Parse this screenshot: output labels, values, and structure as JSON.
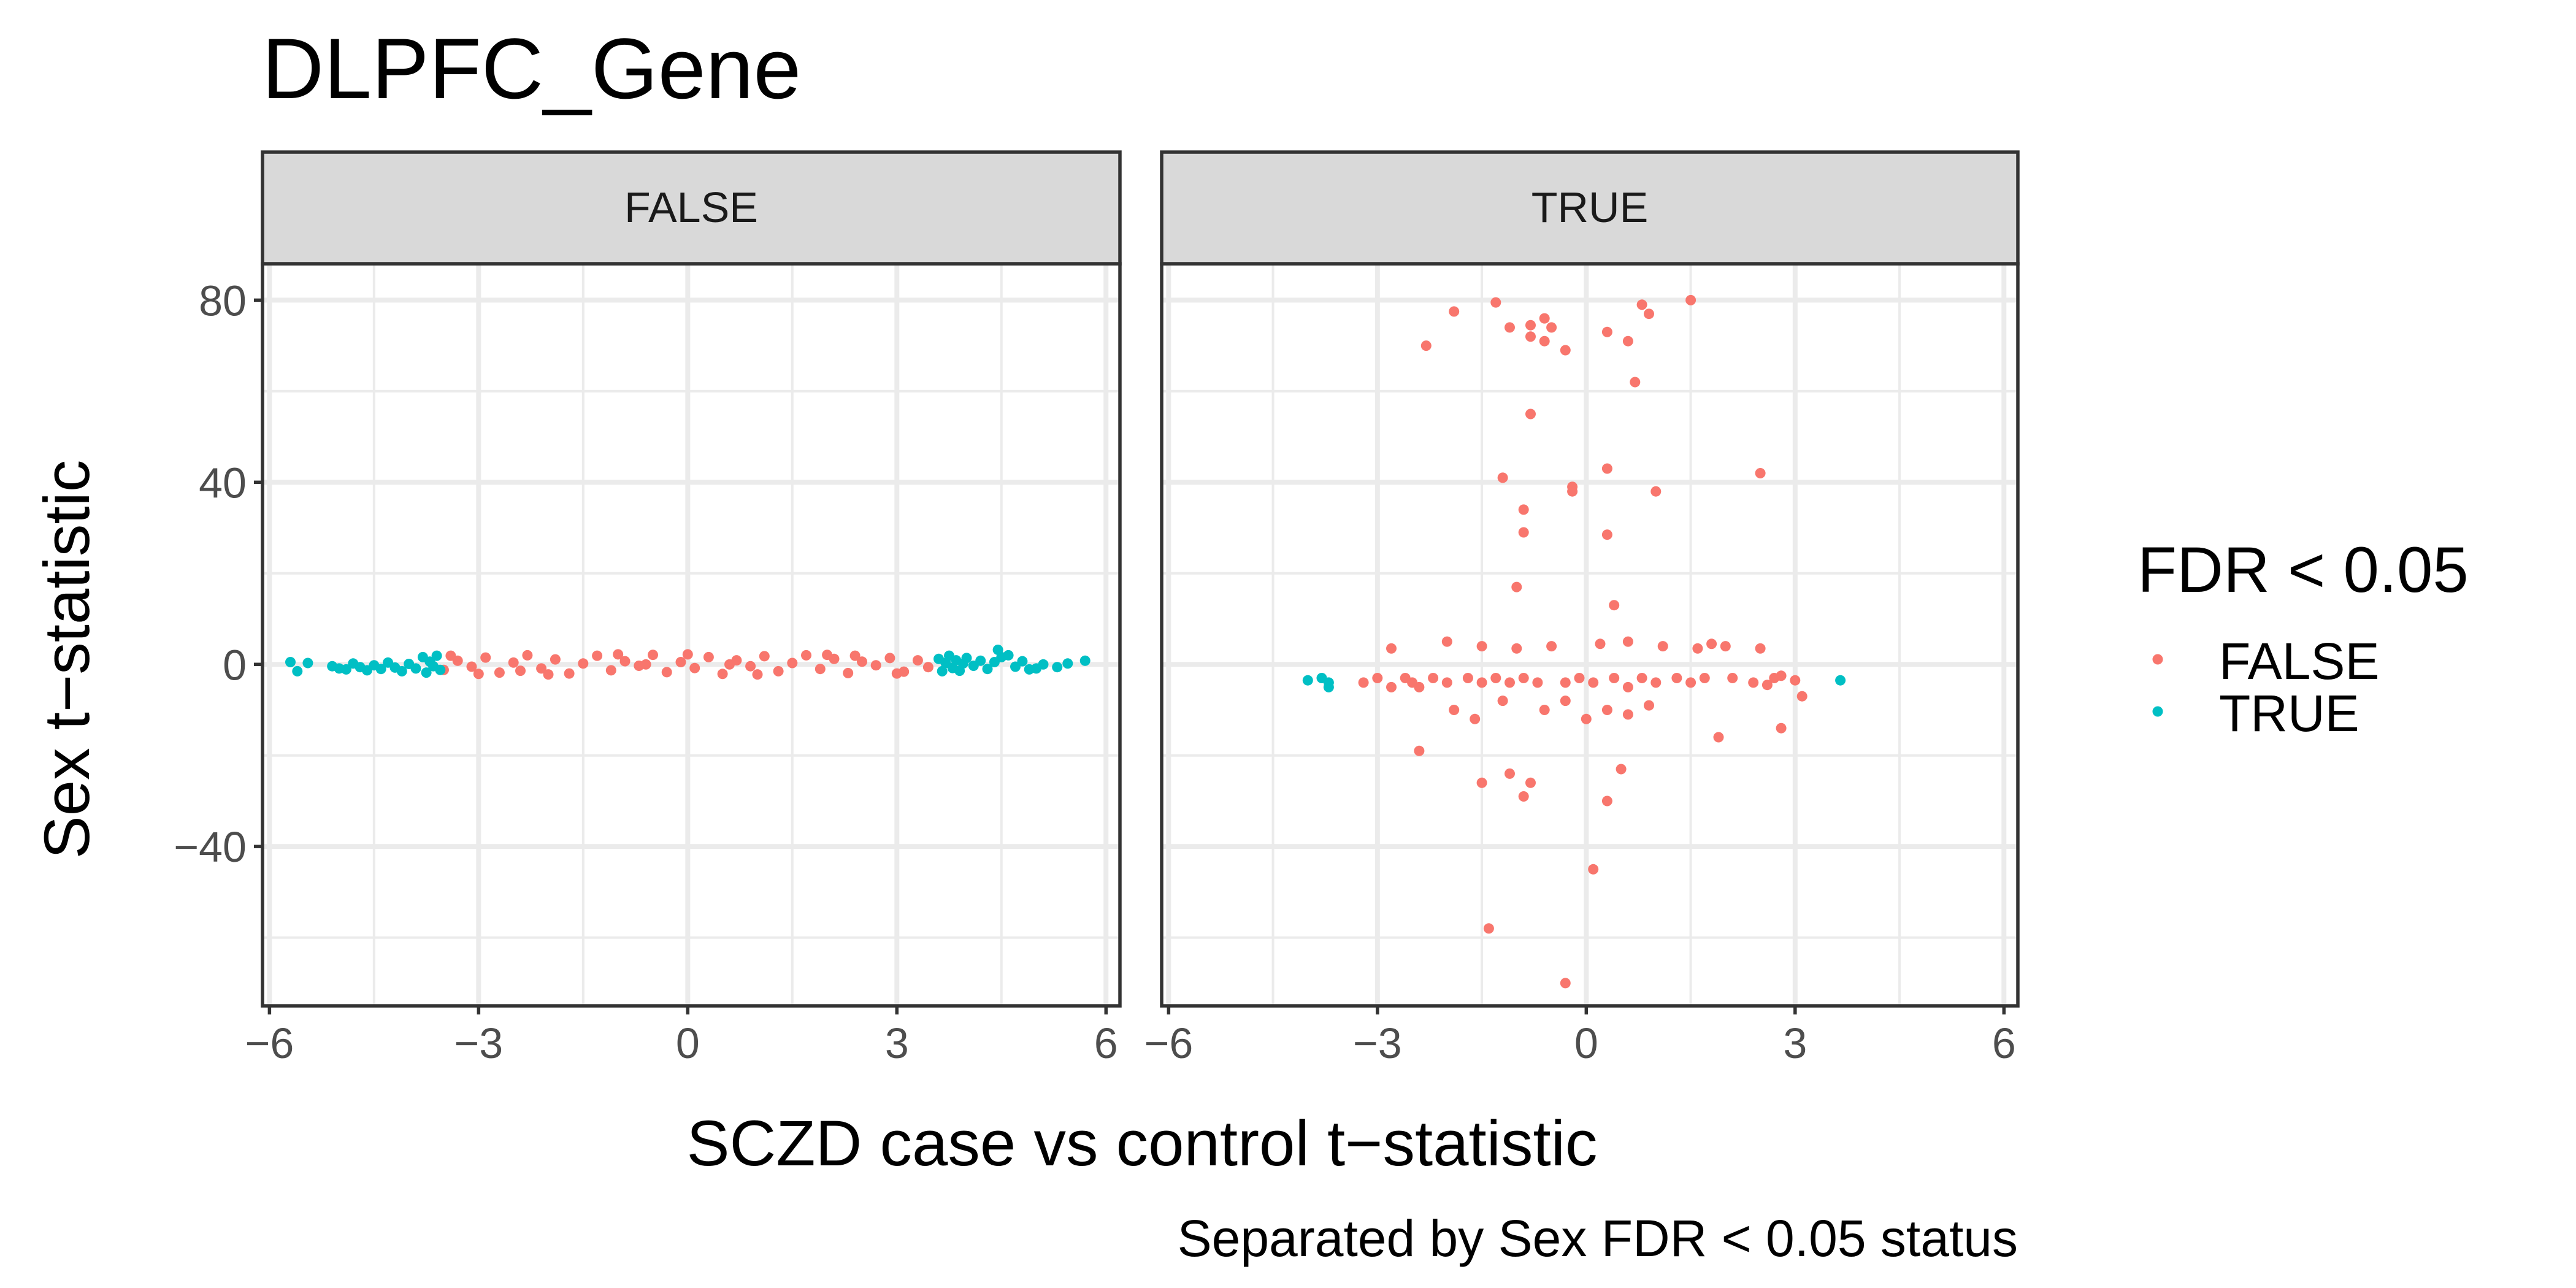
{
  "chart_data": {
    "type": "scatter",
    "title": "DLPFC_Gene",
    "caption": "Separated by Sex FDR < 0.05 status",
    "xlabel": "SCZD case vs control t−statistic",
    "ylabel": "Sex t−statistic",
    "xlim": [
      -6.1,
      6.2
    ],
    "ylim": [
      -75,
      88
    ],
    "x_ticks": [
      -6,
      -3,
      0,
      3,
      6
    ],
    "x_tick_labels": [
      "−6",
      "−3",
      "0",
      "3",
      "6"
    ],
    "y_ticks": [
      -40,
      0,
      40,
      80
    ],
    "y_tick_labels": [
      "−40",
      "0",
      "40",
      "80"
    ],
    "grid": true,
    "facet_variable": "Sex FDR < 0.05",
    "facets": [
      {
        "label": "FALSE",
        "series": [
          {
            "name": "FALSE",
            "points": [
              [
                -3.5,
                -1.2
              ],
              [
                -3.3,
                0.8
              ],
              [
                -3.1,
                -0.5
              ],
              [
                -2.9,
                1.5
              ],
              [
                -2.7,
                -1.8
              ],
              [
                -2.5,
                0.4
              ],
              [
                -2.3,
                2.0
              ],
              [
                -2.1,
                -0.9
              ],
              [
                -1.9,
                1.1
              ],
              [
                -1.7,
                -2.0
              ],
              [
                -1.5,
                0.2
              ],
              [
                -1.3,
                1.9
              ],
              [
                -1.1,
                -1.3
              ],
              [
                -0.9,
                0.7
              ],
              [
                -0.7,
                -0.3
              ],
              [
                -0.5,
                2.1
              ],
              [
                -0.3,
                -1.7
              ],
              [
                -0.1,
                0.5
              ],
              [
                0.1,
                -0.8
              ],
              [
                0.3,
                1.6
              ],
              [
                0.5,
                -2.1
              ],
              [
                0.7,
                0.9
              ],
              [
                0.9,
                -0.4
              ],
              [
                1.1,
                1.8
              ],
              [
                1.3,
                -1.5
              ],
              [
                1.5,
                0.3
              ],
              [
                1.7,
                2.0
              ],
              [
                1.9,
                -1.0
              ],
              [
                2.1,
                1.2
              ],
              [
                2.3,
                -1.9
              ],
              [
                2.5,
                0.6
              ],
              [
                2.7,
                -0.2
              ],
              [
                2.9,
                1.4
              ],
              [
                3.1,
                -1.6
              ],
              [
                3.3,
                0.9
              ],
              [
                3.45,
                -0.6
              ],
              [
                -3.4,
                1.9
              ],
              [
                -2.0,
                -2.2
              ],
              [
                0.0,
                2.2
              ],
              [
                1.0,
                -2.2
              ],
              [
                2.0,
                2.1
              ],
              [
                -1.0,
                2.2
              ],
              [
                3.0,
                -2.0
              ],
              [
                -3.0,
                -2.1
              ],
              [
                2.4,
                1.9
              ],
              [
                -2.4,
                -1.4
              ],
              [
                0.6,
                0.0
              ],
              [
                -0.6,
                0.0
              ]
            ]
          },
          {
            "name": "TRUE",
            "points": [
              [
                -5.7,
                0.5
              ],
              [
                -5.6,
                -1.5
              ],
              [
                -5.45,
                0.3
              ],
              [
                -5.1,
                -0.4
              ],
              [
                -5.0,
                -0.9
              ],
              [
                -4.9,
                -1.1
              ],
              [
                -4.8,
                0.2
              ],
              [
                -4.7,
                -0.6
              ],
              [
                -4.6,
                -1.3
              ],
              [
                -4.5,
                -0.2
              ],
              [
                -4.4,
                -1.0
              ],
              [
                -4.3,
                0.4
              ],
              [
                -4.2,
                -0.7
              ],
              [
                -4.1,
                -1.5
              ],
              [
                -4.0,
                0.1
              ],
              [
                -3.9,
                -0.9
              ],
              [
                -3.8,
                1.6
              ],
              [
                -3.75,
                -1.8
              ],
              [
                -3.7,
                0.6
              ],
              [
                -3.65,
                -0.4
              ],
              [
                -3.6,
                1.9
              ],
              [
                -3.55,
                -1.2
              ],
              [
                3.6,
                1.2
              ],
              [
                3.65,
                -1.5
              ],
              [
                3.7,
                0.3
              ],
              [
                3.75,
                1.9
              ],
              [
                3.8,
                -0.8
              ],
              [
                3.85,
                0.9
              ],
              [
                3.9,
                -1.4
              ],
              [
                3.95,
                0.2
              ],
              [
                4.0,
                1.4
              ],
              [
                4.1,
                -0.3
              ],
              [
                4.2,
                0.8
              ],
              [
                4.3,
                -1.0
              ],
              [
                4.4,
                0.5
              ],
              [
                4.45,
                3.2
              ],
              [
                4.5,
                1.6
              ],
              [
                4.6,
                2.0
              ],
              [
                4.7,
                -0.5
              ],
              [
                4.8,
                0.7
              ],
              [
                4.9,
                -1.1
              ],
              [
                5.0,
                -0.9
              ],
              [
                5.1,
                0.0
              ],
              [
                5.3,
                -0.6
              ],
              [
                5.45,
                0.2
              ],
              [
                5.7,
                0.8
              ]
            ]
          }
        ]
      },
      {
        "label": "TRUE",
        "series": [
          {
            "name": "FALSE",
            "points": [
              [
                -1.9,
                77.5
              ],
              [
                -1.3,
                79.5
              ],
              [
                -1.1,
                74
              ],
              [
                -0.8,
                74.5
              ],
              [
                -0.6,
                76
              ],
              [
                -0.5,
                74
              ],
              [
                -0.8,
                72
              ],
              [
                -0.6,
                71
              ],
              [
                -0.3,
                69
              ],
              [
                -2.3,
                70
              ],
              [
                0.3,
                73
              ],
              [
                0.6,
                71
              ],
              [
                0.8,
                79
              ],
              [
                0.9,
                77
              ],
              [
                1.5,
                80
              ],
              [
                0.7,
                62
              ],
              [
                -0.8,
                55
              ],
              [
                -1.2,
                41
              ],
              [
                0.3,
                43
              ],
              [
                2.5,
                42
              ],
              [
                -0.9,
                34
              ],
              [
                -0.9,
                29
              ],
              [
                0.3,
                28.5
              ],
              [
                -0.2,
                39
              ],
              [
                -0.2,
                38
              ],
              [
                1.0,
                38
              ],
              [
                -1.0,
                17
              ],
              [
                0.4,
                13
              ],
              [
                -2.0,
                5
              ],
              [
                -1.5,
                4
              ],
              [
                -1.0,
                3.5
              ],
              [
                -0.5,
                4
              ],
              [
                0.2,
                4.5
              ],
              [
                0.6,
                5
              ],
              [
                1.1,
                4
              ],
              [
                1.6,
                3.5
              ],
              [
                2.0,
                4
              ],
              [
                2.5,
                3.5
              ],
              [
                -2.8,
                3.5
              ],
              [
                1.8,
                4.5
              ],
              [
                -0.3,
                -4
              ],
              [
                -0.1,
                -3
              ],
              [
                0.1,
                -4
              ],
              [
                0.4,
                -3
              ],
              [
                0.6,
                -5
              ],
              [
                0.8,
                -3
              ],
              [
                1.0,
                -4
              ],
              [
                1.3,
                -3
              ],
              [
                1.5,
                -4
              ],
              [
                1.7,
                -3
              ],
              [
                -0.7,
                -4
              ],
              [
                -0.9,
                -3
              ],
              [
                -1.1,
                -4
              ],
              [
                -1.3,
                -3
              ],
              [
                -1.5,
                -4
              ],
              [
                -1.7,
                -3
              ],
              [
                -2.0,
                -4
              ],
              [
                -2.2,
                -3
              ],
              [
                -2.5,
                -4
              ],
              [
                -2.8,
                -5
              ],
              [
                -3.0,
                -3
              ],
              [
                -3.2,
                -4
              ],
              [
                2.1,
                -3
              ],
              [
                2.4,
                -4
              ],
              [
                2.7,
                -3
              ],
              [
                3.0,
                -3.5
              ],
              [
                2.8,
                -2.5
              ],
              [
                2.6,
                -4.5
              ],
              [
                -2.6,
                -3
              ],
              [
                -2.4,
                -5
              ],
              [
                -1.9,
                -10
              ],
              [
                -1.6,
                -12
              ],
              [
                -1.2,
                -8
              ],
              [
                -0.6,
                -10
              ],
              [
                0.0,
                -12
              ],
              [
                0.3,
                -10
              ],
              [
                0.6,
                -11
              ],
              [
                -0.3,
                -8
              ],
              [
                0.9,
                -9
              ],
              [
                -2.4,
                -19
              ],
              [
                -1.5,
                -26
              ],
              [
                -1.1,
                -24
              ],
              [
                -0.9,
                -29
              ],
              [
                -0.8,
                -26
              ],
              [
                0.5,
                -23
              ],
              [
                0.3,
                -30
              ],
              [
                1.9,
                -16
              ],
              [
                2.8,
                -14
              ],
              [
                3.1,
                -7
              ],
              [
                0.1,
                -45
              ],
              [
                -1.4,
                -58
              ],
              [
                -0.3,
                -70
              ]
            ]
          },
          {
            "name": "TRUE",
            "points": [
              [
                -4.0,
                -3.5
              ],
              [
                -3.8,
                -3
              ],
              [
                -3.7,
                -4
              ],
              [
                -3.7,
                -5
              ],
              [
                3.65,
                -3.5
              ]
            ]
          }
        ]
      }
    ],
    "legend": {
      "title": "FDR < 0.05",
      "placement": "right",
      "entries": [
        {
          "label": "FALSE",
          "color": "#F8766D"
        },
        {
          "label": "TRUE",
          "color": "#00BFC4"
        }
      ]
    }
  }
}
